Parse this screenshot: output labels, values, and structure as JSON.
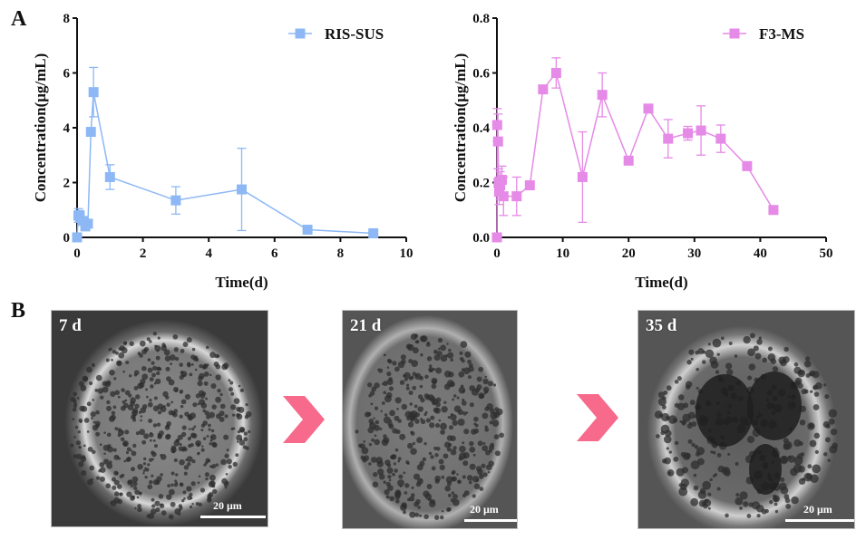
{
  "panels": {
    "a_label": "A",
    "b_label": "B"
  },
  "chart_data": [
    {
      "type": "line",
      "title": "",
      "xlabel": "Time(d)",
      "ylabel": "Concentration(μg/mL)",
      "xlim": [
        0,
        10
      ],
      "ylim": [
        0,
        8
      ],
      "xticks": [
        0,
        2,
        4,
        6,
        8,
        10
      ],
      "yticks": [
        0,
        2,
        4,
        6,
        8
      ],
      "legend": "top-right",
      "grid": false,
      "series": [
        {
          "name": "RIS-SUS",
          "color": "#8db8f5",
          "x": [
            0,
            0.04,
            0.08,
            0.17,
            0.25,
            0.33,
            0.42,
            0.5,
            1,
            3,
            5,
            7,
            9
          ],
          "y": [
            0,
            0.8,
            0.78,
            0.6,
            0.4,
            0.5,
            3.85,
            5.3,
            2.2,
            1.35,
            1.75,
            0.28,
            0.15
          ],
          "err": [
            0,
            0.25,
            0.2,
            0.15,
            0.1,
            0.15,
            0,
            0.9,
            0.45,
            0.5,
            1.5,
            0,
            0
          ]
        }
      ]
    },
    {
      "type": "line",
      "title": "",
      "xlabel": "Time(d)",
      "ylabel": "Concentration(μg/mL)",
      "xlim": [
        0,
        50
      ],
      "ylim": [
        0,
        0.8
      ],
      "xticks": [
        0,
        10,
        20,
        30,
        40,
        50
      ],
      "yticks": [
        "0.0",
        "0.2",
        "0.4",
        "0.6",
        "0.8"
      ],
      "legend": "top-right",
      "grid": false,
      "series": [
        {
          "name": "F3-MS",
          "color": "#e58ae6",
          "x": [
            0,
            0.04,
            0.17,
            0.25,
            0.33,
            0.5,
            0.75,
            1,
            3,
            5,
            7,
            9,
            13,
            16,
            20,
            23,
            26,
            29,
            31,
            34,
            38,
            42
          ],
          "y": [
            0,
            0.41,
            0.35,
            0.2,
            0.17,
            0.19,
            0.21,
            0.15,
            0.15,
            0.19,
            0.54,
            0.6,
            0.22,
            0.52,
            0.28,
            0.47,
            0.36,
            0.38,
            0.39,
            0.36,
            0.26,
            0.1
          ],
          "err": [
            0,
            0.06,
            0.1,
            0.05,
            0.05,
            0.05,
            0.05,
            0.07,
            0.07,
            0,
            0,
            0.055,
            0.165,
            0.08,
            0,
            0,
            0.07,
            0.025,
            0.09,
            0.05,
            0.015,
            0
          ]
        }
      ]
    }
  ],
  "sem_images": [
    {
      "label": "7 d",
      "scale": "20 μm"
    },
    {
      "label": "21 d",
      "scale": "20 μm"
    },
    {
      "label": "35 d",
      "scale": "20 μm"
    }
  ],
  "arrow_color": "#f76a8c"
}
